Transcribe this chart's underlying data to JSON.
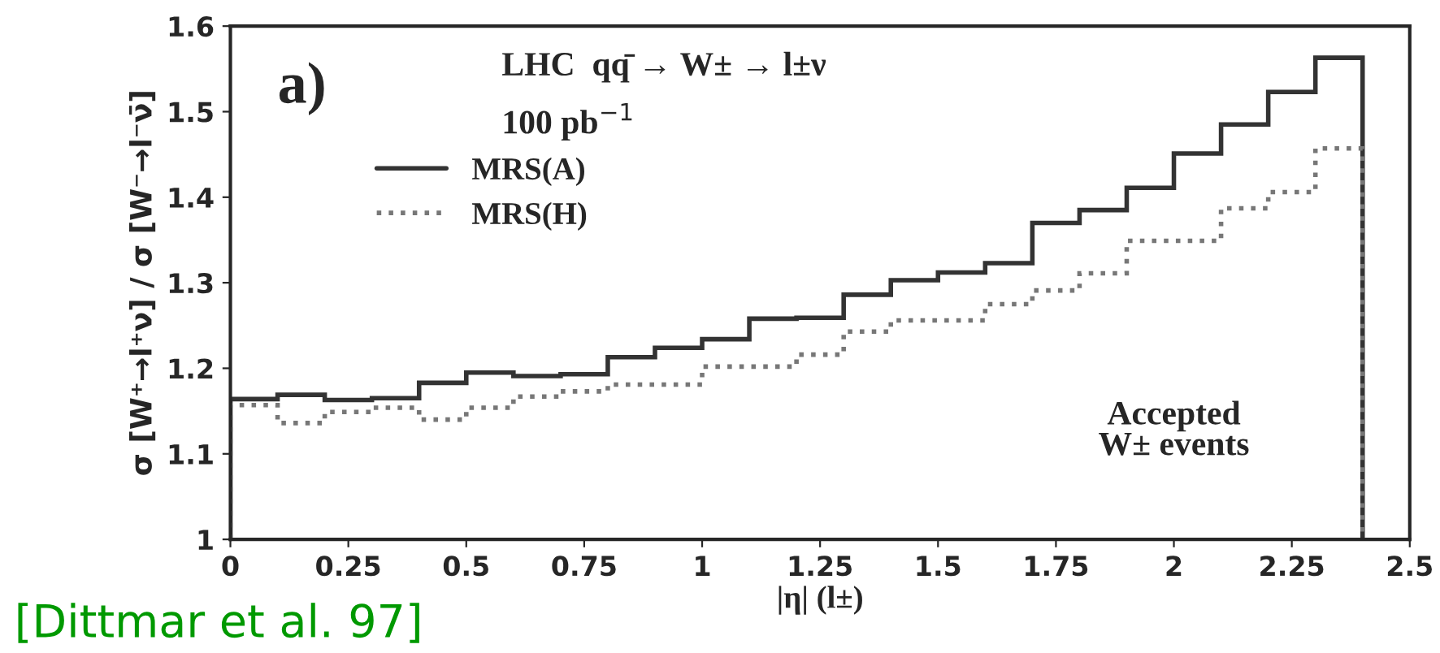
{
  "chart_data": {
    "type": "histogram",
    "bins": [
      0,
      0.1,
      0.2,
      0.3,
      0.4,
      0.5,
      0.6,
      0.7,
      0.8,
      0.9,
      1.0,
      1.1,
      1.2,
      1.3,
      1.4,
      1.5,
      1.6,
      1.7,
      1.8,
      1.9,
      2.0,
      2.1,
      2.2,
      2.3,
      2.4
    ],
    "series": [
      {
        "name": "MRS(A)",
        "color": "#333333",
        "line_style": "solid",
        "values": [
          1.164,
          1.169,
          1.163,
          1.165,
          1.183,
          1.195,
          1.191,
          1.193,
          1.213,
          1.224,
          1.234,
          1.258,
          1.259,
          1.286,
          1.303,
          1.312,
          1.323,
          1.37,
          1.385,
          1.411,
          1.451,
          1.485,
          1.523,
          1.563
        ]
      },
      {
        "name": "MRS(H)",
        "color": "#777777",
        "line_style": "dotted",
        "values": [
          1.157,
          1.136,
          1.149,
          1.154,
          1.14,
          1.154,
          1.167,
          1.173,
          1.181,
          1.181,
          1.202,
          1.202,
          1.216,
          1.243,
          1.256,
          1.256,
          1.275,
          1.291,
          1.311,
          1.349,
          1.349,
          1.387,
          1.406,
          1.457
        ]
      }
    ],
    "xlabel": "|η| (l±)",
    "ylabel": "σ [W⁺→l⁺ν] / σ [W⁻→l⁻ν̄]",
    "xlim": [
      0,
      2.5
    ],
    "xticks": [
      0,
      0.25,
      0.5,
      0.75,
      1,
      1.25,
      1.5,
      1.75,
      2,
      2.25,
      2.5
    ],
    "ylim": [
      1,
      1.6
    ],
    "yticks": [
      1,
      1.1,
      1.2,
      1.3,
      1.4,
      1.5,
      1.6
    ],
    "legend": "top left",
    "grid": false,
    "annotations": [
      "a)",
      "LHC  qq̄ → W± → l±ν",
      "100 pb$^{−1}$",
      "Accepted\nW± events",
      "[Dittmar et al. 97]"
    ]
  }
}
